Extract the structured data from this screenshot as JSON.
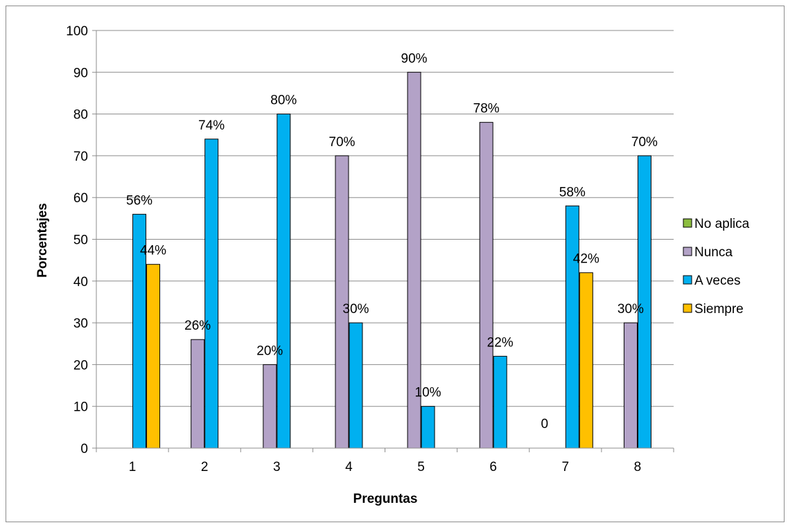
{
  "chart_data": {
    "type": "bar",
    "title": "",
    "xlabel": "Preguntas",
    "ylabel": "Porcentajes",
    "ylim": [
      0,
      100
    ],
    "yticks": [
      0,
      10,
      20,
      30,
      40,
      50,
      60,
      70,
      80,
      90,
      100
    ],
    "categories": [
      "1",
      "2",
      "3",
      "4",
      "5",
      "6",
      "7",
      "8"
    ],
    "grid": true,
    "legend_position": "right",
    "series": [
      {
        "name": "No aplica",
        "color": "#8cbd3f",
        "values": [
          null,
          null,
          null,
          null,
          null,
          null,
          0,
          null
        ],
        "labels": [
          "",
          "",
          "",
          "",
          "",
          "",
          "0",
          ""
        ]
      },
      {
        "name": "Nunca",
        "color": "#b3a2c7",
        "values": [
          null,
          26,
          20,
          70,
          90,
          78,
          null,
          30
        ],
        "labels": [
          "",
          "26%",
          "20%",
          "70%",
          "90%",
          "78%",
          "",
          "30%"
        ]
      },
      {
        "name": "A veces",
        "color": "#00b0f0",
        "values": [
          56,
          74,
          80,
          30,
          10,
          22,
          58,
          70
        ],
        "labels": [
          "56%",
          "74%",
          "80%",
          "30%",
          "10%",
          "22%",
          "58%",
          "70%"
        ]
      },
      {
        "name": "Siempre",
        "color": "#ffc000",
        "values": [
          44,
          null,
          null,
          null,
          null,
          null,
          42,
          null
        ],
        "labels": [
          "44%",
          "",
          "",
          "",
          "",
          "",
          "42%",
          ""
        ]
      }
    ]
  }
}
